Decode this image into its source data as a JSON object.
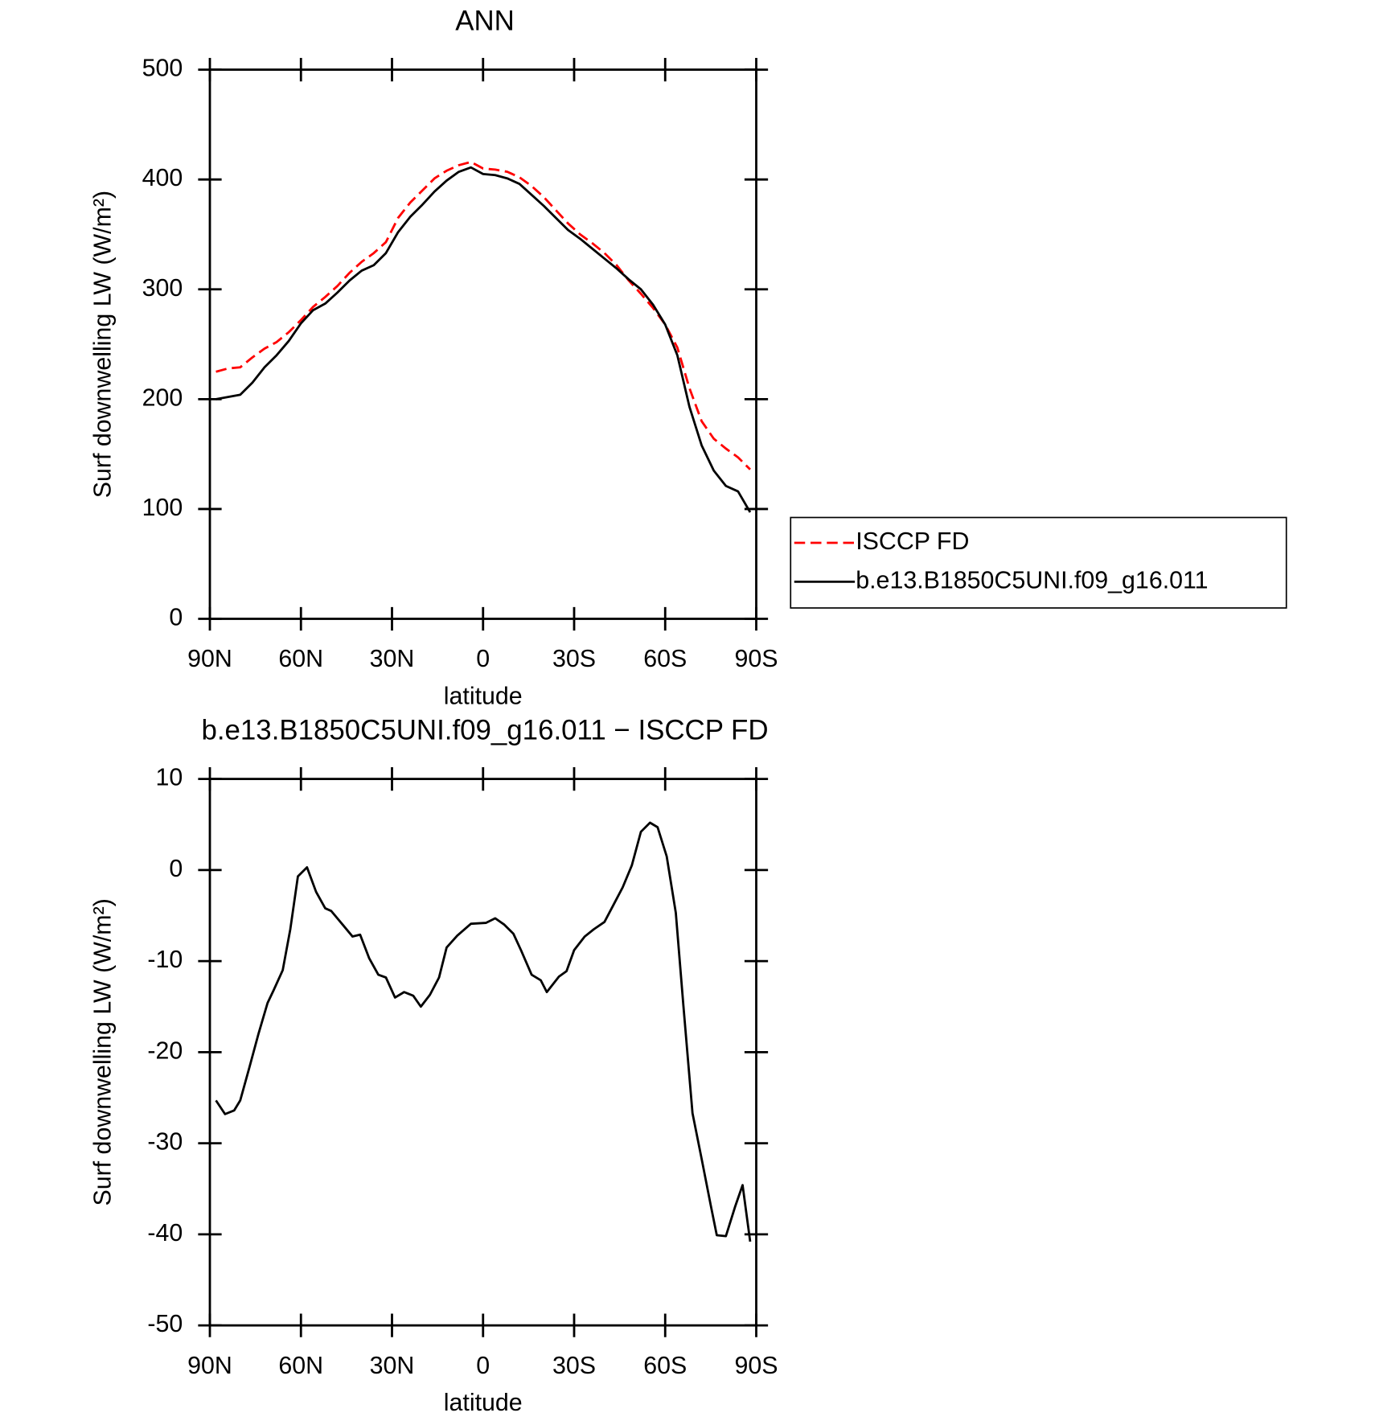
{
  "chart_data": [
    {
      "type": "line",
      "title": "ANN",
      "xlabel": "latitude",
      "ylabel": "Surf downwelling LW (W/m²)",
      "x": [
        88,
        84,
        80,
        76,
        72,
        68,
        64,
        60,
        56,
        52,
        48,
        44,
        40,
        36,
        32,
        28,
        24,
        20,
        16,
        12,
        8,
        4,
        0,
        -4,
        -8,
        -12,
        -16,
        -20,
        -24,
        -28,
        -32,
        -36,
        -40,
        -44,
        -48,
        -52,
        -56,
        -60,
        -64,
        -68,
        -72,
        -76,
        -80,
        -84,
        -88
      ],
      "series": [
        {
          "name": "ISCCP FD",
          "color": "#ff0000",
          "line_style": "dashed",
          "values": [
            225,
            228,
            229,
            238,
            246,
            252,
            261,
            272,
            284,
            293,
            303,
            315,
            325,
            333,
            343,
            365,
            379,
            390,
            401,
            408,
            413,
            416,
            410,
            409,
            407,
            402,
            394,
            384,
            372,
            360,
            350,
            342,
            333,
            322,
            308,
            296,
            283,
            268,
            247,
            210,
            180,
            164,
            155,
            147,
            136
          ]
        },
        {
          "name": "b.e13.B1850C5UNI.f09_g16.011",
          "color": "#000000",
          "line_style": "solid",
          "values": [
            200,
            202,
            204,
            215,
            229,
            240,
            253,
            269,
            281,
            287,
            297,
            308,
            317,
            322,
            333,
            352,
            366,
            377,
            389,
            399,
            407,
            411,
            405,
            404,
            401,
            396,
            386,
            376,
            365,
            354,
            346,
            337,
            328,
            319,
            309,
            300,
            286,
            268,
            240,
            193,
            158,
            135,
            121,
            116,
            97
          ]
        }
      ],
      "xlim": [
        90,
        -90
      ],
      "xticks": [
        {
          "value": 90,
          "label": "90N"
        },
        {
          "value": 60,
          "label": "60N"
        },
        {
          "value": 30,
          "label": "30N"
        },
        0,
        {
          "value": -30,
          "label": "30S"
        },
        {
          "value": -60,
          "label": "60S"
        },
        {
          "value": -90,
          "label": "90S"
        }
      ],
      "ylim": [
        0,
        500
      ],
      "yticks": [
        0,
        100,
        200,
        300,
        400,
        500
      ],
      "legend": "right"
    },
    {
      "type": "line",
      "title": "b.e13.B1850C5UNI.f09_g16.011 − ISCCP FD",
      "xlabel": "latitude",
      "ylabel": "Surf downwelling LW (W/m²)",
      "x": [
        88,
        85,
        82,
        80,
        77,
        74,
        71,
        69,
        66,
        63.5,
        61,
        58,
        55,
        52,
        50,
        46,
        43,
        40.5,
        37.5,
        34.5,
        32,
        29,
        26,
        23,
        20.5,
        17.5,
        14.5,
        12,
        8.5,
        4,
        -1,
        -4,
        -7,
        -10,
        -12.5,
        -16,
        -19,
        -21,
        -25,
        -27.5,
        -30,
        -33.5,
        -36.5,
        -40,
        -43,
        -46,
        -49,
        -52,
        -55,
        -57.5,
        -60.5,
        -63.5,
        -66,
        -69,
        -72,
        -75,
        -77,
        -80,
        -83,
        -85.5,
        -88
      ],
      "values": [
        -25.3,
        -26.8,
        -26.4,
        -25.3,
        -21.7,
        -18,
        -14.6,
        -13.2,
        -11,
        -6.5,
        -0.7,
        0.3,
        -2.4,
        -4.2,
        -4.5,
        -6.1,
        -7.3,
        -7.1,
        -9.7,
        -11.5,
        -11.8,
        -14,
        -13.4,
        -13.8,
        -15,
        -13.7,
        -11.8,
        -8.5,
        -7.2,
        -5.9,
        -5.8,
        -5.3,
        -6,
        -7,
        -8.8,
        -11.5,
        -12.1,
        -13.4,
        -11.7,
        -11.1,
        -8.8,
        -7.3,
        -6.5,
        -5.7,
        -3.8,
        -1.9,
        0.5,
        4.2,
        5.2,
        4.7,
        1.5,
        -4.7,
        -14.9,
        -26.7,
        -31.7,
        -36.8,
        -40.1,
        -40.2,
        -37,
        -34.6,
        -40.8
      ],
      "color": "#000000",
      "xlim": [
        90,
        -90
      ],
      "xticks": [
        {
          "value": 90,
          "label": "90N"
        },
        {
          "value": 60,
          "label": "60N"
        },
        {
          "value": 30,
          "label": "30N"
        },
        0,
        {
          "value": -30,
          "label": "30S"
        },
        {
          "value": -60,
          "label": "60S"
        },
        {
          "value": -90,
          "label": "90S"
        }
      ],
      "ylim": [
        -50,
        10
      ],
      "yticks": [
        -50,
        -40,
        -30,
        -20,
        -10,
        0,
        10
      ]
    }
  ]
}
